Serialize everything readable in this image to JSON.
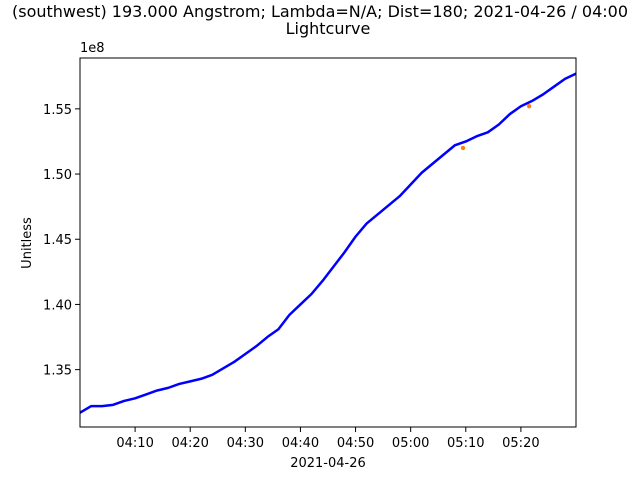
{
  "chart_data": {
    "type": "line",
    "title_line1": "(southwest) 193.000 Angstrom; Lambda=N/A; Dist=180; 2021-04-26 / 04:00",
    "title_line2": "Lightcurve",
    "xlabel": "2021-04-26",
    "ylabel": "Unitless",
    "y_offset_label": "1e8",
    "x_tick_labels": [
      "04:10",
      "04:20",
      "04:30",
      "04:40",
      "04:50",
      "05:00",
      "05:10",
      "05:20"
    ],
    "x_tick_minutes": [
      10,
      20,
      30,
      40,
      50,
      60,
      70,
      80
    ],
    "xlim_minutes": [
      0,
      90
    ],
    "y_tick_labels": [
      "1.35",
      "1.40",
      "1.45",
      "1.50",
      "1.55"
    ],
    "y_tick_values": [
      1.35,
      1.4,
      1.45,
      1.5,
      1.55
    ],
    "ylim": [
      1.306,
      1.589
    ],
    "grid": false,
    "series": [
      {
        "color": "#0000ff",
        "x_minutes": [
          0,
          2,
          4,
          6,
          8,
          10,
          12,
          14,
          16,
          18,
          20,
          22,
          24,
          26,
          28,
          30,
          32,
          34,
          36,
          38,
          40,
          42,
          44,
          46,
          48,
          50,
          52,
          54,
          56,
          58,
          60,
          62,
          64,
          66,
          68,
          70,
          72,
          74,
          76,
          78,
          80,
          82,
          84,
          86,
          88,
          90
        ],
        "values": [
          1.317,
          1.322,
          1.322,
          1.323,
          1.326,
          1.328,
          1.331,
          1.334,
          1.336,
          1.339,
          1.341,
          1.343,
          1.346,
          1.351,
          1.356,
          1.362,
          1.368,
          1.375,
          1.381,
          1.392,
          1.4,
          1.408,
          1.418,
          1.429,
          1.44,
          1.452,
          1.462,
          1.469,
          1.476,
          1.483,
          1.492,
          1.501,
          1.508,
          1.515,
          1.522,
          1.525,
          1.529,
          1.532,
          1.538,
          1.546,
          1.552,
          1.556,
          1.561,
          1.567,
          1.573,
          1.577
        ]
      }
    ],
    "markers": [
      {
        "color": "#ff7f0e",
        "x_minute": 69.5,
        "value": 1.52
      },
      {
        "color": "#ff7f0e",
        "x_minute": 81.5,
        "value": 1.552
      }
    ]
  }
}
